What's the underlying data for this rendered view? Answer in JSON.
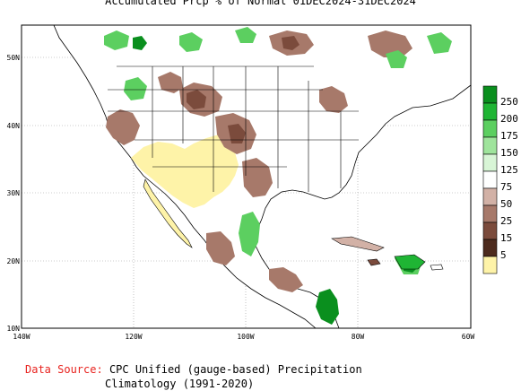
{
  "title": "Accumulated Prcp % of Normal 01DEC2024-31DEC2024",
  "axes": {
    "lon_labels": [
      "140W",
      "120W",
      "100W",
      "80W",
      "60W"
    ],
    "lat_labels": [
      "50N",
      "40N",
      "30N",
      "20N",
      "10N"
    ]
  },
  "legend": {
    "labels": [
      "250",
      "200",
      "175",
      "150",
      "125",
      "75",
      "50",
      "25",
      "15",
      "5"
    ],
    "colors": [
      "#0a8f1e",
      "#1fb534",
      "#5ccf60",
      "#9fe49c",
      "#d8f5d6",
      "#ffffff",
      "#d2b1a6",
      "#a7796a",
      "#7b4b3c",
      "#4d2b1e",
      "#fef3a8"
    ]
  },
  "source": {
    "label": "Data Source:",
    "text": "CPC Unified (gauge-based) Precipitation",
    "text2": "Climatology (1991-2020)"
  },
  "colors": {
    "land_neutral": "#ffffff",
    "dry_yellow": "#fef3a8",
    "brown": "#a7796a",
    "green": "#5ccf60",
    "ocean": "#ffffff"
  }
}
